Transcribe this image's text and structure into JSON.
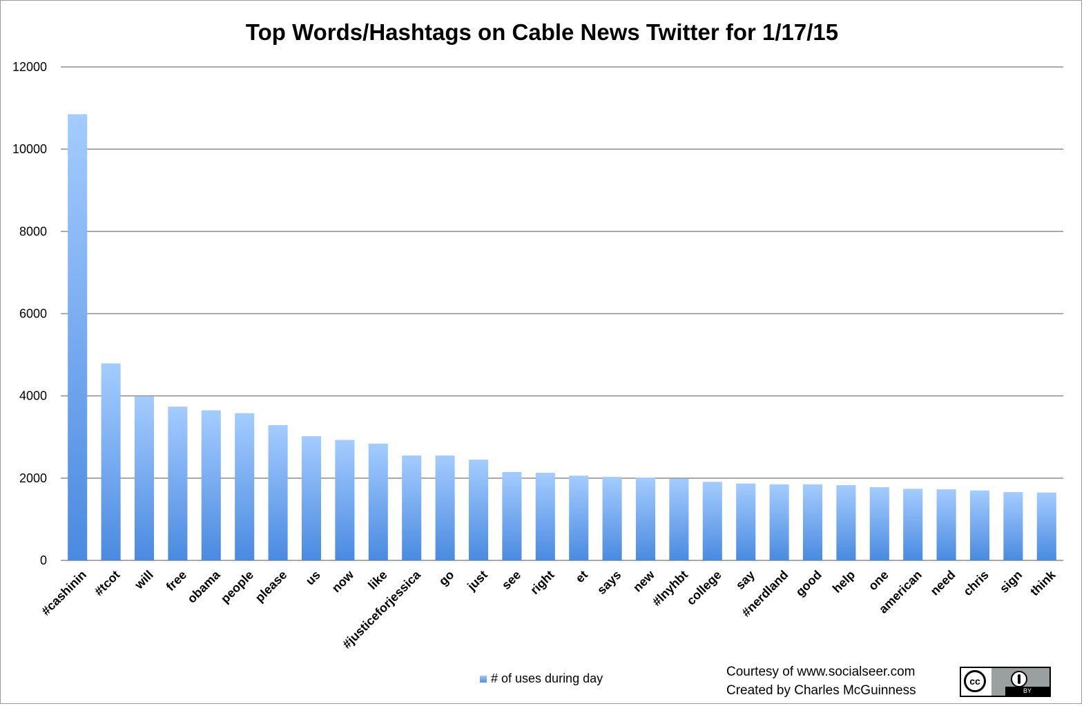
{
  "chart_data": {
    "type": "bar",
    "title": "Top Words/Hashtags on Cable News Twitter for 1/17/15",
    "xlabel": "",
    "ylabel": "",
    "ylim": [
      0,
      12000
    ],
    "yticks": [
      0,
      2000,
      4000,
      6000,
      8000,
      10000,
      12000
    ],
    "grid": true,
    "legend_position": "bottom",
    "categories": [
      "#cashinin",
      "#tcot",
      "will",
      "free",
      "obama",
      "people",
      "please",
      "us",
      "now",
      "like",
      "#justiceforjessica",
      "go",
      "just",
      "see",
      "right",
      "et",
      "says",
      "new",
      "#lnyhbt",
      "college",
      "say",
      "#nerdland",
      "good",
      "help",
      "one",
      "american",
      "need",
      "chris",
      "sign",
      "think"
    ],
    "series": [
      {
        "name": "# of uses during day",
        "values": [
          10850,
          4790,
          3990,
          3740,
          3650,
          3580,
          3290,
          3020,
          2930,
          2840,
          2550,
          2550,
          2450,
          2150,
          2130,
          2060,
          2030,
          2010,
          1990,
          1910,
          1870,
          1850,
          1850,
          1830,
          1780,
          1740,
          1730,
          1700,
          1660,
          1650
        ],
        "color": "#5b97e6"
      }
    ]
  },
  "credits": {
    "line1": "Courtesy of www.socialseer.com",
    "line2": "Created by Charles McGuinness"
  },
  "license_badge": {
    "icon": "creative-commons-by-icon",
    "cc_label": "cc",
    "by_label": "BY"
  }
}
